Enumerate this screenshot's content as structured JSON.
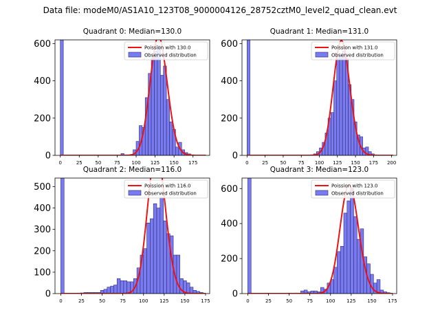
{
  "figure": {
    "suptitle": "Data file: modeM0/AS1A10_123T08_9000004126_28752cztM0_level2_quad_clean.evt"
  },
  "colors": {
    "bar_fill": "#7b7bf0",
    "bar_edge": "#2a2a7a",
    "fit_line": "#ee1111"
  },
  "chart_data": [
    {
      "type": "bar",
      "title": "Quadrant 0: Median=130.0",
      "legend": [
        "Poission with 130.0",
        "Observed distribution"
      ],
      "legend_position": "top-right",
      "lambda": 130.0,
      "xlim": [
        -7,
        197
      ],
      "ylim": [
        0,
        620
      ],
      "xticks": [
        0,
        25,
        50,
        75,
        100,
        125,
        150,
        175
      ],
      "yticks": [
        0,
        200,
        400,
        600
      ],
      "bin_width": 4,
      "bins": [
        [
          0,
          620
        ],
        [
          80,
          10
        ],
        [
          84,
          3
        ],
        [
          88,
          2
        ],
        [
          92,
          5
        ],
        [
          96,
          30
        ],
        [
          100,
          75
        ],
        [
          104,
          160
        ],
        [
          108,
          150
        ],
        [
          112,
          310
        ],
        [
          116,
          440
        ],
        [
          120,
          520
        ],
        [
          124,
          560
        ],
        [
          128,
          590
        ],
        [
          132,
          430
        ],
        [
          136,
          480
        ],
        [
          140,
          300
        ],
        [
          144,
          180
        ],
        [
          148,
          140
        ],
        [
          152,
          45
        ],
        [
          156,
          70
        ],
        [
          160,
          30
        ],
        [
          164,
          15
        ],
        [
          168,
          8
        ],
        [
          172,
          3
        ]
      ]
    },
    {
      "type": "bar",
      "title": "Quadrant 1: Median=131.0",
      "legend": [
        "Poission with 131.0",
        "Observed distribution"
      ],
      "legend_position": "top-right",
      "lambda": 131.0,
      "xlim": [
        -7,
        207
      ],
      "ylim": [
        0,
        620
      ],
      "xticks": [
        0,
        25,
        50,
        75,
        100,
        125,
        150,
        175,
        200
      ],
      "yticks": [
        0,
        200,
        400,
        600
      ],
      "bin_width": 4,
      "bins": [
        [
          0,
          620
        ],
        [
          84,
          2
        ],
        [
          88,
          3
        ],
        [
          92,
          8
        ],
        [
          96,
          20
        ],
        [
          100,
          40
        ],
        [
          104,
          70
        ],
        [
          108,
          120
        ],
        [
          112,
          200
        ],
        [
          116,
          230
        ],
        [
          120,
          400
        ],
        [
          124,
          520
        ],
        [
          128,
          540
        ],
        [
          132,
          560
        ],
        [
          136,
          520
        ],
        [
          140,
          380
        ],
        [
          144,
          300
        ],
        [
          148,
          180
        ],
        [
          152,
          110
        ],
        [
          156,
          100
        ],
        [
          160,
          40
        ],
        [
          164,
          45
        ],
        [
          168,
          20
        ],
        [
          172,
          8
        ],
        [
          176,
          3
        ]
      ]
    },
    {
      "type": "bar",
      "title": "Quadrant 2: Median=116.0",
      "legend": [
        "Poission with 116.0",
        "Observed distribution"
      ],
      "legend_position": "top-right",
      "lambda": 116.0,
      "xlim": [
        -7,
        180
      ],
      "ylim": [
        0,
        540
      ],
      "xticks": [
        0,
        25,
        50,
        75,
        100,
        125,
        150,
        175
      ],
      "yticks": [
        0,
        100,
        200,
        300,
        400,
        500
      ],
      "bin_width": 4,
      "bins": [
        [
          0,
          540
        ],
        [
          20,
          2
        ],
        [
          24,
          3
        ],
        [
          28,
          5
        ],
        [
          32,
          5
        ],
        [
          36,
          5
        ],
        [
          40,
          5
        ],
        [
          44,
          5
        ],
        [
          48,
          15
        ],
        [
          52,
          20
        ],
        [
          56,
          30
        ],
        [
          60,
          35
        ],
        [
          64,
          40
        ],
        [
          68,
          70
        ],
        [
          72,
          60
        ],
        [
          76,
          60
        ],
        [
          80,
          55
        ],
        [
          84,
          55
        ],
        [
          88,
          70
        ],
        [
          92,
          120
        ],
        [
          96,
          180
        ],
        [
          100,
          210
        ],
        [
          104,
          330
        ],
        [
          108,
          350
        ],
        [
          112,
          420
        ],
        [
          116,
          400
        ],
        [
          120,
          450
        ],
        [
          124,
          340
        ],
        [
          128,
          280
        ],
        [
          132,
          270
        ],
        [
          136,
          180
        ],
        [
          140,
          180
        ],
        [
          144,
          70
        ],
        [
          148,
          60
        ],
        [
          152,
          50
        ],
        [
          156,
          30
        ],
        [
          160,
          15
        ],
        [
          164,
          10
        ],
        [
          168,
          5
        ]
      ]
    },
    {
      "type": "bar",
      "title": "Quadrant 3: Median=123.0",
      "legend": [
        "Poission with 123.0",
        "Observed distribution"
      ],
      "legend_position": "top-right",
      "lambda": 123.0,
      "xlim": [
        -7,
        180
      ],
      "ylim": [
        0,
        660
      ],
      "xticks": [
        0,
        25,
        50,
        75,
        100,
        125,
        150,
        175
      ],
      "yticks": [
        0,
        200,
        400,
        600
      ],
      "bin_width": 4,
      "bins": [
        [
          0,
          660
        ],
        [
          56,
          3
        ],
        [
          60,
          2
        ],
        [
          64,
          15
        ],
        [
          68,
          20
        ],
        [
          72,
          10
        ],
        [
          76,
          15
        ],
        [
          80,
          15
        ],
        [
          84,
          10
        ],
        [
          88,
          35
        ],
        [
          92,
          25
        ],
        [
          96,
          60
        ],
        [
          100,
          80
        ],
        [
          104,
          150
        ],
        [
          108,
          240
        ],
        [
          112,
          270
        ],
        [
          116,
          460
        ],
        [
          120,
          530
        ],
        [
          124,
          600
        ],
        [
          128,
          440
        ],
        [
          132,
          310
        ],
        [
          136,
          370
        ],
        [
          140,
          210
        ],
        [
          144,
          170
        ],
        [
          148,
          110
        ],
        [
          152,
          60
        ],
        [
          156,
          80
        ],
        [
          160,
          20
        ],
        [
          164,
          10
        ],
        [
          168,
          5
        ]
      ]
    }
  ]
}
